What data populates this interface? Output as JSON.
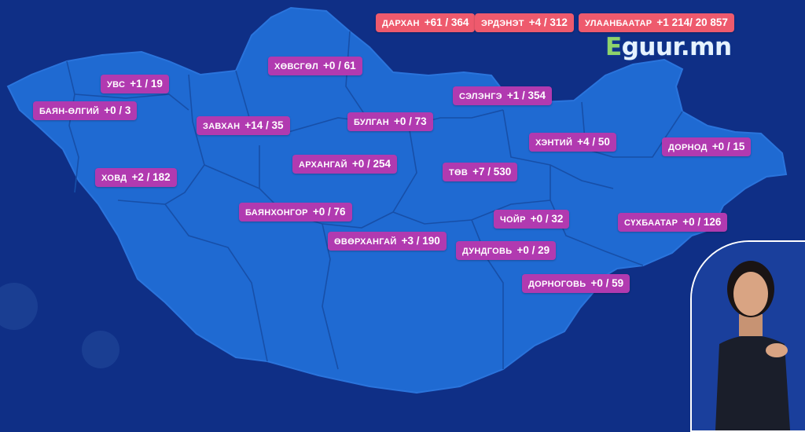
{
  "logo": {
    "first": "E",
    "rest": "guur.mn"
  },
  "colors": {
    "background": "#0f2f86",
    "map_fill": "#1f6ad2",
    "aimag_label": "#b13ab0",
    "city_label": "#ee5a6d"
  },
  "cities": [
    {
      "name": "ДАРХАН",
      "value": "+61 / 364"
    },
    {
      "name": "ЭРДЭНЭТ",
      "value": "+4 / 312"
    },
    {
      "name": "УЛААНБААТАР",
      "value": "+1 214/ 20 857"
    }
  ],
  "aimags": [
    {
      "name": "ХӨВСГӨЛ",
      "value": "+0 / 61"
    },
    {
      "name": "УВС",
      "value": "+1 / 19"
    },
    {
      "name": "БАЯН-ӨЛГИЙ",
      "value": "+0 / 3"
    },
    {
      "name": "ЗАВХАН",
      "value": "+14 / 35"
    },
    {
      "name": "БУЛГАН",
      "value": "+0 / 73"
    },
    {
      "name": "СЭЛЭНГЭ",
      "value": "+1 / 354"
    },
    {
      "name": "ХЭНТИЙ",
      "value": "+4 / 50"
    },
    {
      "name": "ДОРНОД",
      "value": "+0 / 15"
    },
    {
      "name": "АРХАНГАЙ",
      "value": "+0 / 254"
    },
    {
      "name": "ТӨВ",
      "value": "+7 / 530"
    },
    {
      "name": "ХОВД",
      "value": "+2 / 182"
    },
    {
      "name": "БАЯНХОНГОР",
      "value": "+0 / 76"
    },
    {
      "name": "ЧОЙР",
      "value": "+0 / 32"
    },
    {
      "name": "СҮХБААТАР",
      "value": "+0 / 126"
    },
    {
      "name": "ӨВӨРХАНГАЙ",
      "value": "+3 / 190"
    },
    {
      "name": "ДУНДГОВЬ",
      "value": "+0 / 29"
    },
    {
      "name": "ДОРНОГОВЬ",
      "value": "+0 / 59"
    }
  ]
}
